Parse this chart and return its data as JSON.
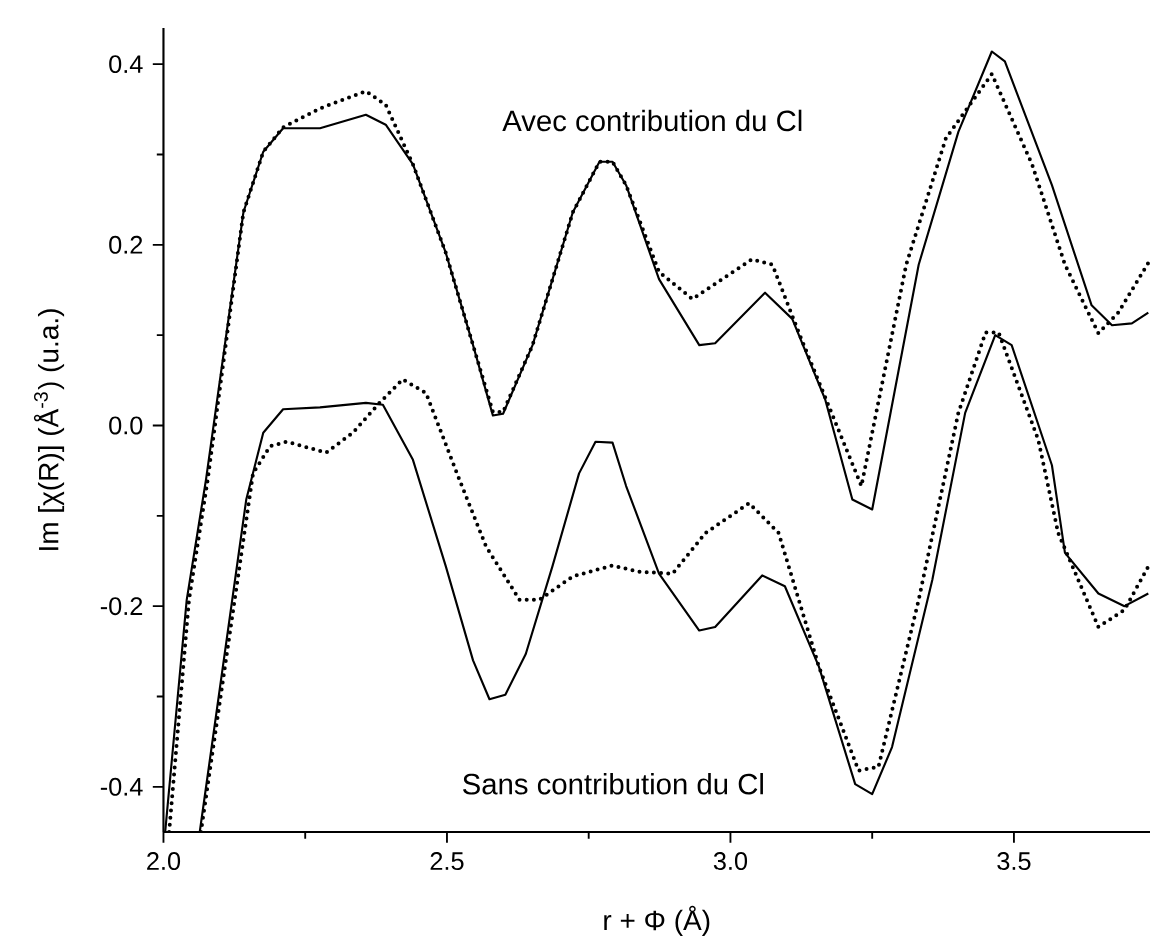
{
  "chart_data": {
    "type": "line",
    "xlabel": "r + Φ (Å)",
    "ylabel": "Im [χ(R)] (Å$^{-3}$) (u.a.)",
    "xlim": [
      2.0,
      3.74
    ],
    "ylim": [
      -0.45,
      0.44
    ],
    "xticks": [
      {
        "value": 2.0,
        "label": "2.0"
      },
      {
        "value": 2.25,
        "label": null
      },
      {
        "value": 2.5,
        "label": "2.5"
      },
      {
        "value": 2.75,
        "label": null
      },
      {
        "value": 3.0,
        "label": "3.0"
      },
      {
        "value": 3.25,
        "label": null
      },
      {
        "value": 3.5,
        "label": "3.5"
      }
    ],
    "yticks": [
      {
        "value": -0.4,
        "label": "-0.4"
      },
      {
        "value": -0.3,
        "label": null
      },
      {
        "value": -0.2,
        "label": "-0.2"
      },
      {
        "value": -0.1,
        "label": null
      },
      {
        "value": 0.0,
        "label": "0.0"
      },
      {
        "value": 0.1,
        "label": null
      },
      {
        "value": 0.2,
        "label": "0.2"
      },
      {
        "value": 0.3,
        "label": null
      },
      {
        "value": 0.4,
        "label": "0.4"
      }
    ],
    "grid": false,
    "marker": "none",
    "annotations": [
      "Avec contribution du Cl",
      "Sans contribution du Cl"
    ],
    "series": [
      {
        "color": "#000000",
        "line_style": "solid",
        "x": [
          2.003,
          2.041,
          2.075,
          2.141,
          2.176,
          2.211,
          2.276,
          2.357,
          2.392,
          2.44,
          2.498,
          2.546,
          2.581,
          2.599,
          2.651,
          2.722,
          2.769,
          2.792,
          2.816,
          2.874,
          2.945,
          2.973,
          3.061,
          3.109,
          3.167,
          3.215,
          3.25,
          3.332,
          3.402,
          3.461,
          3.484,
          3.567,
          3.637,
          3.673,
          3.708,
          3.737
        ],
        "values": [
          -0.45,
          -0.193,
          -0.06,
          0.236,
          0.303,
          0.329,
          0.329,
          0.344,
          0.333,
          0.289,
          0.191,
          0.089,
          0.011,
          0.013,
          0.089,
          0.236,
          0.292,
          0.292,
          0.266,
          0.162,
          0.089,
          0.091,
          0.147,
          0.118,
          0.029,
          -0.082,
          -0.093,
          0.178,
          0.325,
          0.414,
          0.403,
          0.266,
          0.133,
          0.111,
          0.113,
          0.125
        ]
      },
      {
        "color": "#000000",
        "line_style": "dotted",
        "x": [
          2.01,
          2.045,
          2.078,
          2.141,
          2.176,
          2.211,
          2.276,
          2.357,
          2.392,
          2.44,
          2.498,
          2.546,
          2.581,
          2.599,
          2.651,
          2.722,
          2.769,
          2.792,
          2.816,
          2.874,
          2.933,
          3.038,
          3.074,
          3.121,
          3.231,
          3.31,
          3.38,
          3.461,
          3.532,
          3.59,
          3.649,
          3.684,
          3.737
        ],
        "values": [
          -0.45,
          -0.193,
          -0.06,
          0.236,
          0.303,
          0.33,
          0.351,
          0.37,
          0.355,
          0.289,
          0.191,
          0.089,
          0.015,
          0.015,
          0.089,
          0.236,
          0.292,
          0.292,
          0.266,
          0.17,
          0.14,
          0.184,
          0.178,
          0.102,
          -0.067,
          0.178,
          0.318,
          0.389,
          0.289,
          0.178,
          0.102,
          0.125,
          0.18
        ]
      },
      {
        "color": "#000000",
        "line_style": "solid",
        "x": [
          2.064,
          2.146,
          2.176,
          2.211,
          2.276,
          2.357,
          2.387,
          2.44,
          2.498,
          2.546,
          2.575,
          2.603,
          2.639,
          2.686,
          2.733,
          2.762,
          2.792,
          2.816,
          2.874,
          2.945,
          2.973,
          3.056,
          3.096,
          3.156,
          3.22,
          3.25,
          3.285,
          3.356,
          3.414,
          3.467,
          3.496,
          3.567,
          3.59,
          3.649,
          3.695,
          3.737
        ],
        "values": [
          -0.45,
          -0.082,
          -0.008,
          0.018,
          0.02,
          0.025,
          0.023,
          -0.038,
          -0.156,
          -0.26,
          -0.303,
          -0.298,
          -0.253,
          -0.156,
          -0.053,
          -0.018,
          -0.019,
          -0.067,
          -0.164,
          -0.227,
          -0.223,
          -0.166,
          -0.178,
          -0.267,
          -0.397,
          -0.408,
          -0.356,
          -0.171,
          0.014,
          0.1,
          0.089,
          -0.044,
          -0.141,
          -0.186,
          -0.2,
          -0.186
        ]
      },
      {
        "color": "#000000",
        "line_style": "dotted",
        "x": [
          2.066,
          2.158,
          2.188,
          2.217,
          2.287,
          2.334,
          2.381,
          2.422,
          2.463,
          2.522,
          2.569,
          2.628,
          2.663,
          2.722,
          2.792,
          2.839,
          2.898,
          2.956,
          3.033,
          3.085,
          3.156,
          3.226,
          3.261,
          3.332,
          3.402,
          3.45,
          3.473,
          3.543,
          3.578,
          3.649,
          3.695,
          3.737
        ],
        "values": [
          -0.45,
          -0.053,
          -0.023,
          -0.018,
          -0.03,
          -0.008,
          0.025,
          0.051,
          0.036,
          -0.06,
          -0.134,
          -0.193,
          -0.193,
          -0.167,
          -0.155,
          -0.162,
          -0.164,
          -0.119,
          -0.086,
          -0.119,
          -0.267,
          -0.382,
          -0.378,
          -0.193,
          0.014,
          0.103,
          0.103,
          -0.016,
          -0.119,
          -0.223,
          -0.204,
          -0.156
        ]
      }
    ]
  }
}
